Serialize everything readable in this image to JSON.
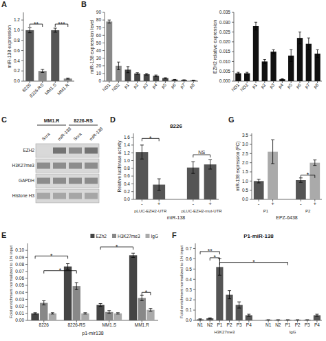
{
  "chart_data": [
    {
      "type": "bar",
      "categories": [
        "8226",
        "8226-RS",
        "MM1.S",
        "MM1.R"
      ],
      "values": [
        1.0,
        0.2,
        1.0,
        0.05
      ],
      "errors": [
        0.05,
        0.03,
        0.04,
        0.01
      ],
      "colors": [
        "#555555",
        "#888888",
        "#555555",
        "#888888"
      ],
      "ylabel": "miR-138 expression",
      "ylim": [
        0,
        1.35
      ],
      "yticks": [
        {
          "value": 0,
          "label": "0.0"
        },
        0.2,
        0.4,
        0.6,
        0.8,
        {
          "value": 1.0,
          "label": "1.0"
        },
        1.2
      ],
      "annotations": [
        {
          "text": "A"
        },
        {
          "text": "**",
          "y": 1.12,
          "from": 0,
          "to": 1
        },
        {
          "text": "***",
          "y": 1.12,
          "from": 2,
          "to": 3
        }
      ]
    },
    {
      "type": "bar",
      "categories": [
        "ND1",
        "ND2",
        "p1",
        "p2",
        "p3",
        "p4",
        "p5",
        "p6",
        "p7",
        "p8"
      ],
      "values": [
        78,
        20,
        15,
        10,
        9,
        7,
        4,
        2,
        1.5,
        1
      ],
      "errors": [
        2,
        5,
        4,
        1,
        1,
        1,
        0.5,
        0.3,
        0.3,
        0.2
      ],
      "colors": [
        "#888888",
        "#888888",
        "#444444",
        "#444444",
        "#444444",
        "#444444",
        "#444444",
        "#444444",
        "#444444",
        "#444444"
      ],
      "ylabel": "miR-138 expression level",
      "ylim": [
        0,
        90
      ],
      "yticks": [
        0,
        10,
        20,
        30,
        40,
        50,
        60,
        70,
        80,
        90
      ],
      "annotations": [
        {
          "text": "B"
        }
      ]
    },
    {
      "type": "bar",
      "categories": [
        "ND1",
        "ND2",
        "p1",
        "p2",
        "p3",
        "p4",
        "p5",
        "p6",
        "p7",
        "p8"
      ],
      "values": [
        0.004,
        0.004,
        0.028,
        0.01,
        0.015,
        0.001,
        0.013,
        0.022,
        0.019,
        0.014
      ],
      "errors": [
        0.0005,
        0.0005,
        0.002,
        0.001,
        0.001,
        0.0002,
        0.003,
        0.003,
        0.003,
        0.002
      ],
      "colors": [
        "#111111",
        "#111111",
        "#111111",
        "#111111",
        "#111111",
        "#111111",
        "#111111",
        "#111111",
        "#111111",
        "#111111"
      ],
      "ylabel": "EZH2 relative expression",
      "ylim": [
        0,
        0.035
      ],
      "yticks": [
        {
          "value": 0,
          "label": "0.000"
        },
        0.005,
        {
          "value": 0.01,
          "label": "0.010"
        },
        0.015,
        {
          "value": 0.02,
          "label": "0.020"
        },
        0.025,
        {
          "value": 0.03,
          "label": "0.030"
        },
        0.035
      ]
    },
    {
      "type": "heatmap",
      "categories": [
        "Scra",
        "miR-138",
        "Scra",
        "miR-138"
      ],
      "y_categories": [
        "EZH2",
        "H3K27me3",
        "GAPDH",
        "Histone H3"
      ],
      "values": [
        [
          0.15,
          0.55,
          0.45,
          0.55
        ],
        [
          0.45,
          0.45,
          0.45,
          0.45
        ],
        [
          0.45,
          0.45,
          0.45,
          0.45
        ],
        [
          0.35,
          0.35,
          0.35,
          0.35
        ]
      ],
      "annotations": [
        {
          "text": "C"
        },
        {
          "text": "MM1.R",
          "from": 0,
          "to": 1
        },
        {
          "text": "8226-RS",
          "from": 2,
          "to": 3
        }
      ]
    },
    {
      "type": "bar",
      "title": "8226",
      "categories": [
        "-",
        "+"
      ],
      "xlabel": "miR-138",
      "series": [
        {
          "name": "pLUC-EZH2-UTR",
          "values": [
            1.22,
            0.38
          ],
          "errors": [
            0.18,
            0.15
          ]
        },
        {
          "name": "pLUC-EZH2-mut-UTR",
          "values": [
            0.82,
            0.9
          ],
          "errors": [
            0.15,
            0.12
          ]
        }
      ],
      "color": "#555555",
      "ylabel": "Relative luciferase activity",
      "ylim": [
        0,
        1.7
      ],
      "yticks": [
        {
          "value": 0,
          "label": "0.0"
        },
        0.2,
        0.4,
        0.6,
        0.8,
        {
          "value": 1.0,
          "label": "1.0"
        },
        1.2,
        1.4,
        1.6
      ],
      "annotations": [
        {
          "text": "D"
        },
        {
          "text": "*",
          "y": 1.57,
          "from": [
            0,
            0
          ],
          "to": [
            0,
            1
          ]
        },
        {
          "text": "NS",
          "y": 1.15,
          "from": [
            1,
            0
          ],
          "to": [
            1,
            1
          ]
        }
      ]
    },
    {
      "type": "bar",
      "categories": [
        "-",
        "+"
      ],
      "xlabel": "EPZ-6438",
      "series": [
        {
          "name": "P1",
          "values": [
            1.0,
            2.6
          ],
          "errors": [
            0.1,
            0.65
          ],
          "colors": [
            "#555555",
            "#aaaaaa"
          ]
        },
        {
          "name": "P2",
          "values": [
            1.05,
            2.0
          ],
          "errors": [
            0.12,
            0.15
          ],
          "colors": [
            "#555555",
            "#aaaaaa"
          ]
        }
      ],
      "ylabel": "miR-138 expression (FC)",
      "ylim": [
        0,
        3.6
      ],
      "yticks": [
        {
          "value": 0,
          "label": "0.0"
        },
        0.5,
        {
          "value": 1.0,
          "label": "1.0"
        },
        1.5,
        {
          "value": 2.0,
          "label": "2.0"
        },
        2.5,
        {
          "value": 3.0,
          "label": "3.0"
        },
        3.5
      ],
      "annotations": [
        {
          "text": "G"
        },
        {
          "text": "*",
          "y": 1.32,
          "from": [
            1,
            0
          ],
          "to": [
            1,
            1
          ]
        }
      ]
    },
    {
      "type": "bar",
      "categories": [
        "8226",
        "8226-RS",
        "MM1.S",
        "MM1.R"
      ],
      "xlabel": "p1-mir138",
      "series": [
        {
          "name": "EZh2",
          "color": "#444444",
          "values": [
            0.01,
            0.077,
            0.022,
            0.093
          ],
          "errors": [
            0.001,
            0.004,
            0.002,
            0.003
          ]
        },
        {
          "name": "H3K27me3",
          "color": "#888888",
          "values": [
            0.025,
            0.049,
            0.012,
            0.032
          ],
          "errors": [
            0.003,
            0.005,
            0.002,
            0.004
          ]
        },
        {
          "name": "IgG",
          "color": "#aaaaaa",
          "values": [
            0.01,
            0.01,
            0.01,
            0.015
          ],
          "errors": [
            0.001,
            0.001,
            0.001,
            0.002
          ]
        }
      ],
      "legend": "upper right",
      "ylabel": "Fold enrichment normalized to 1% input",
      "ylim": [
        0,
        0.11
      ],
      "yticks": [
        {
          "value": 0,
          "label": "0.00"
        },
        0.01,
        0.02,
        0.03,
        0.04,
        0.05,
        0.06,
        0.07,
        0.08,
        0.09,
        {
          "value": 0.1,
          "label": "0.10"
        }
      ],
      "annotations": [
        {
          "text": "E"
        },
        {
          "text": "*",
          "y": 0.092,
          "from": [
            0,
            0
          ],
          "to": [
            0,
            1
          ]
        },
        {
          "text": "*",
          "y": 0.071,
          "from": [
            1,
            0
          ],
          "to": [
            1,
            1
          ]
        },
        {
          "text": "*",
          "y": 0.105,
          "from": [
            0,
            2
          ],
          "to": [
            0,
            3
          ]
        },
        {
          "text": "*",
          "y": 0.04,
          "from": [
            1,
            3
          ],
          "to": [
            2,
            3
          ]
        }
      ]
    },
    {
      "type": "bar",
      "title": "P1-miR-138",
      "categories": [
        "N1",
        "N2",
        "P1",
        "P2",
        "P3",
        "P4"
      ],
      "series": [
        {
          "name": "H3K27me3",
          "values": [
            0.01,
            0.02,
            0.52,
            0.25,
            0.15,
            0.05
          ],
          "errors": [
            0.005,
            0.005,
            0.08,
            0.04,
            0.03,
            0.01
          ]
        },
        {
          "name": "IgG",
          "values": [
            0.005,
            0.005,
            0.005,
            0.005,
            0.005,
            0.05
          ],
          "errors": [
            0.001,
            0.001,
            0.001,
            0.001,
            0.001,
            0.01
          ]
        }
      ],
      "color": "#555555",
      "ylabel": "Fold enrichment normalized to 1% input",
      "ylim": [
        0,
        0.75
      ],
      "yticks": [
        {
          "value": 0,
          "label": "0.0"
        },
        0.1,
        0.2,
        0.3,
        0.4,
        0.5,
        0.6,
        0.7
      ],
      "annotations": [
        {
          "text": "F"
        },
        {
          "text": "**",
          "y": 0.67,
          "from": [
            0,
            0
          ],
          "to": [
            0,
            2
          ]
        },
        {
          "text": "*",
          "y": 0.61,
          "from": [
            0,
            1
          ],
          "to": [
            0,
            2
          ]
        },
        {
          "text": "*",
          "y": 0.565,
          "from": [
            0,
            2
          ],
          "to": [
            1,
            2
          ]
        }
      ]
    }
  ]
}
